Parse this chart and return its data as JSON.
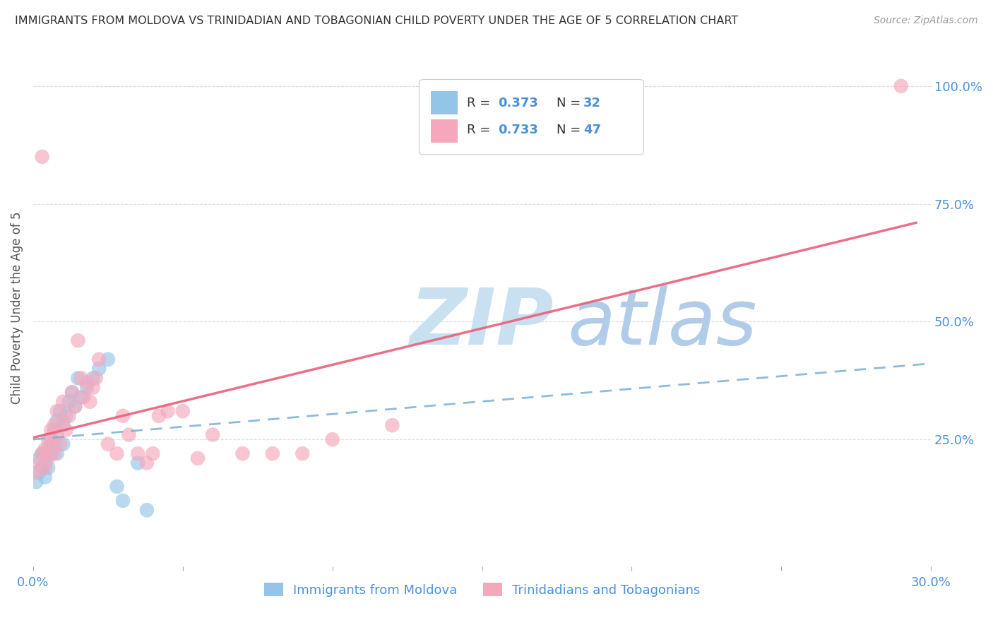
{
  "title": "IMMIGRANTS FROM MOLDOVA VS TRINIDADIAN AND TOBAGONIAN CHILD POVERTY UNDER THE AGE OF 5 CORRELATION CHART",
  "source": "Source: ZipAtlas.com",
  "ylabel": "Child Poverty Under the Age of 5",
  "xlim": [
    0.0,
    0.3
  ],
  "ylim": [
    -0.02,
    1.08
  ],
  "xticks": [
    0.0,
    0.05,
    0.1,
    0.15,
    0.2,
    0.25,
    0.3
  ],
  "xticklabels": [
    "0.0%",
    "",
    "",
    "",
    "",
    "",
    "30.0%"
  ],
  "yticks_right": [
    0.25,
    0.5,
    0.75,
    1.0
  ],
  "ytick_right_labels": [
    "25.0%",
    "50.0%",
    "75.0%",
    "100.0%"
  ],
  "blue_color": "#92C5E8",
  "pink_color": "#F5A8BC",
  "blue_line_color": "#7BAFD4",
  "pink_line_color": "#E8607A",
  "axis_label_color": "#4A90D9",
  "title_color": "#333333",
  "grid_color": "#DDDDDD",
  "watermark_zip_color": "#C8E0F0",
  "watermark_atlas_color": "#B0CCE8",
  "legend_label1": "Immigrants from Moldova",
  "legend_label2": "Trinidadians and Tobagonians",
  "blue_scatter_x": [
    0.001,
    0.002,
    0.002,
    0.003,
    0.003,
    0.004,
    0.004,
    0.005,
    0.005,
    0.006,
    0.006,
    0.007,
    0.007,
    0.008,
    0.008,
    0.009,
    0.01,
    0.01,
    0.011,
    0.012,
    0.013,
    0.014,
    0.015,
    0.016,
    0.018,
    0.02,
    0.022,
    0.025,
    0.028,
    0.03,
    0.035,
    0.038
  ],
  "blue_scatter_y": [
    0.16,
    0.18,
    0.21,
    0.19,
    0.22,
    0.17,
    0.2,
    0.23,
    0.19,
    0.25,
    0.22,
    0.27,
    0.24,
    0.29,
    0.22,
    0.31,
    0.28,
    0.24,
    0.3,
    0.33,
    0.35,
    0.32,
    0.38,
    0.34,
    0.36,
    0.38,
    0.4,
    0.42,
    0.15,
    0.12,
    0.2,
    0.1
  ],
  "pink_scatter_x": [
    0.001,
    0.002,
    0.003,
    0.003,
    0.004,
    0.004,
    0.005,
    0.005,
    0.006,
    0.006,
    0.007,
    0.007,
    0.008,
    0.008,
    0.009,
    0.01,
    0.01,
    0.011,
    0.012,
    0.013,
    0.014,
    0.015,
    0.016,
    0.017,
    0.018,
    0.019,
    0.02,
    0.021,
    0.022,
    0.025,
    0.028,
    0.03,
    0.032,
    0.035,
    0.038,
    0.04,
    0.042,
    0.045,
    0.05,
    0.055,
    0.06,
    0.07,
    0.08,
    0.09,
    0.1,
    0.12,
    0.29
  ],
  "pink_scatter_y": [
    0.18,
    0.2,
    0.85,
    0.22,
    0.19,
    0.23,
    0.21,
    0.25,
    0.24,
    0.27,
    0.22,
    0.28,
    0.26,
    0.31,
    0.24,
    0.29,
    0.33,
    0.27,
    0.3,
    0.35,
    0.32,
    0.46,
    0.38,
    0.34,
    0.37,
    0.33,
    0.36,
    0.38,
    0.42,
    0.24,
    0.22,
    0.3,
    0.26,
    0.22,
    0.2,
    0.22,
    0.3,
    0.31,
    0.31,
    0.21,
    0.26,
    0.22,
    0.22,
    0.22,
    0.25,
    0.28,
    1.0
  ]
}
